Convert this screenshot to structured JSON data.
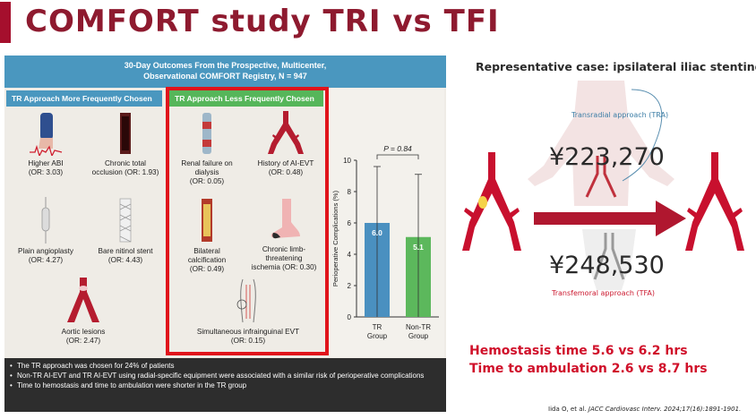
{
  "slide": {
    "title": "COMFORT study TRI vs TFI"
  },
  "abstract": {
    "header_line1": "30-Day Outcomes From the Prospective, Multicenter,",
    "header_line2": "Observational COMFORT Registry, N = 947",
    "tr_header": "TR Approach More  Frequently Chosen",
    "ntr_header": "TR Approach Less  Frequently Chosen",
    "tr_items": [
      {
        "label": "Higher ABI",
        "or": "(OR: 3.03)"
      },
      {
        "label": "Chronic total",
        "label2": "occlusion (OR: 1.93)"
      },
      {
        "label": "Plain angioplasty",
        "or": "(OR: 4.27)"
      },
      {
        "label": "Bare nitinol stent",
        "or": "(OR: 4.43)"
      },
      {
        "label": "Aortic lesions",
        "or": "(OR: 2.47)"
      }
    ],
    "ntr_items": [
      {
        "label": "Renal failure on",
        "label2": "dialysis",
        "or": "(OR: 0.05)"
      },
      {
        "label": "History of AI-EVT",
        "or": "(OR: 0.48)"
      },
      {
        "label": "Bilateral",
        "label2": "calcification",
        "or": "(OR: 0.49)"
      },
      {
        "label": "Chronic limb-",
        "label2": "threatening",
        "label3": "ischemia (OR: 0.30)"
      },
      {
        "label": "Simultaneous infrainguinal EVT",
        "or": "(OR: 0.15)"
      }
    ],
    "bullets": [
      "The TR approach was chosen for 24% of patients",
      "Non-TR AI-EVT and TR AI-EVT using radial-specific equipment were associated with a similar risk of perioperative complications",
      "Time to hemostasis and time to ambulation were shorter in the TR group"
    ]
  },
  "chart_data": {
    "type": "bar",
    "categories": [
      "TR Group",
      "Non-TR Group"
    ],
    "category_lines": [
      [
        "TR",
        "Group"
      ],
      [
        "Non-TR",
        "Group"
      ]
    ],
    "values": [
      6.0,
      5.1
    ],
    "value_labels": [
      "6.0",
      "5.1"
    ],
    "error_upper": [
      9.6,
      9.1
    ],
    "error_lower": [
      0.0,
      0.0
    ],
    "ylabel": "Perioperative Complications (%)",
    "ylim": [
      0,
      10
    ],
    "yticks": [
      "0",
      "2",
      "4",
      "6",
      "8",
      "10"
    ],
    "annotation": "P = 0.84",
    "colors": [
      "#4a90c0",
      "#5cb85c"
    ],
    "grid": false
  },
  "case": {
    "title": "Representative case: ipsilateral iliac stenting",
    "tra_label": "Transradial approach (TRA)",
    "tfa_label": "Transfemoral approach (TFA)",
    "price_tra": "¥223,270",
    "price_tfa": "¥248,530"
  },
  "results": {
    "line1": "Hemostasis time 5.6 vs 6.2 hrs",
    "line2": "Time to ambulation 2.6 vs 8.7 hrs"
  },
  "citation": {
    "authors": "Iida O, et al. ",
    "journal": "JACC Cardiovasc Interv. 2024;17(16):1891-1901."
  },
  "colors": {
    "accent": "#a50f2d",
    "tr_blue": "#4a97bf",
    "ntr_green": "#56b65a",
    "frame_red": "#e0141b",
    "result_red": "#d0102a"
  }
}
